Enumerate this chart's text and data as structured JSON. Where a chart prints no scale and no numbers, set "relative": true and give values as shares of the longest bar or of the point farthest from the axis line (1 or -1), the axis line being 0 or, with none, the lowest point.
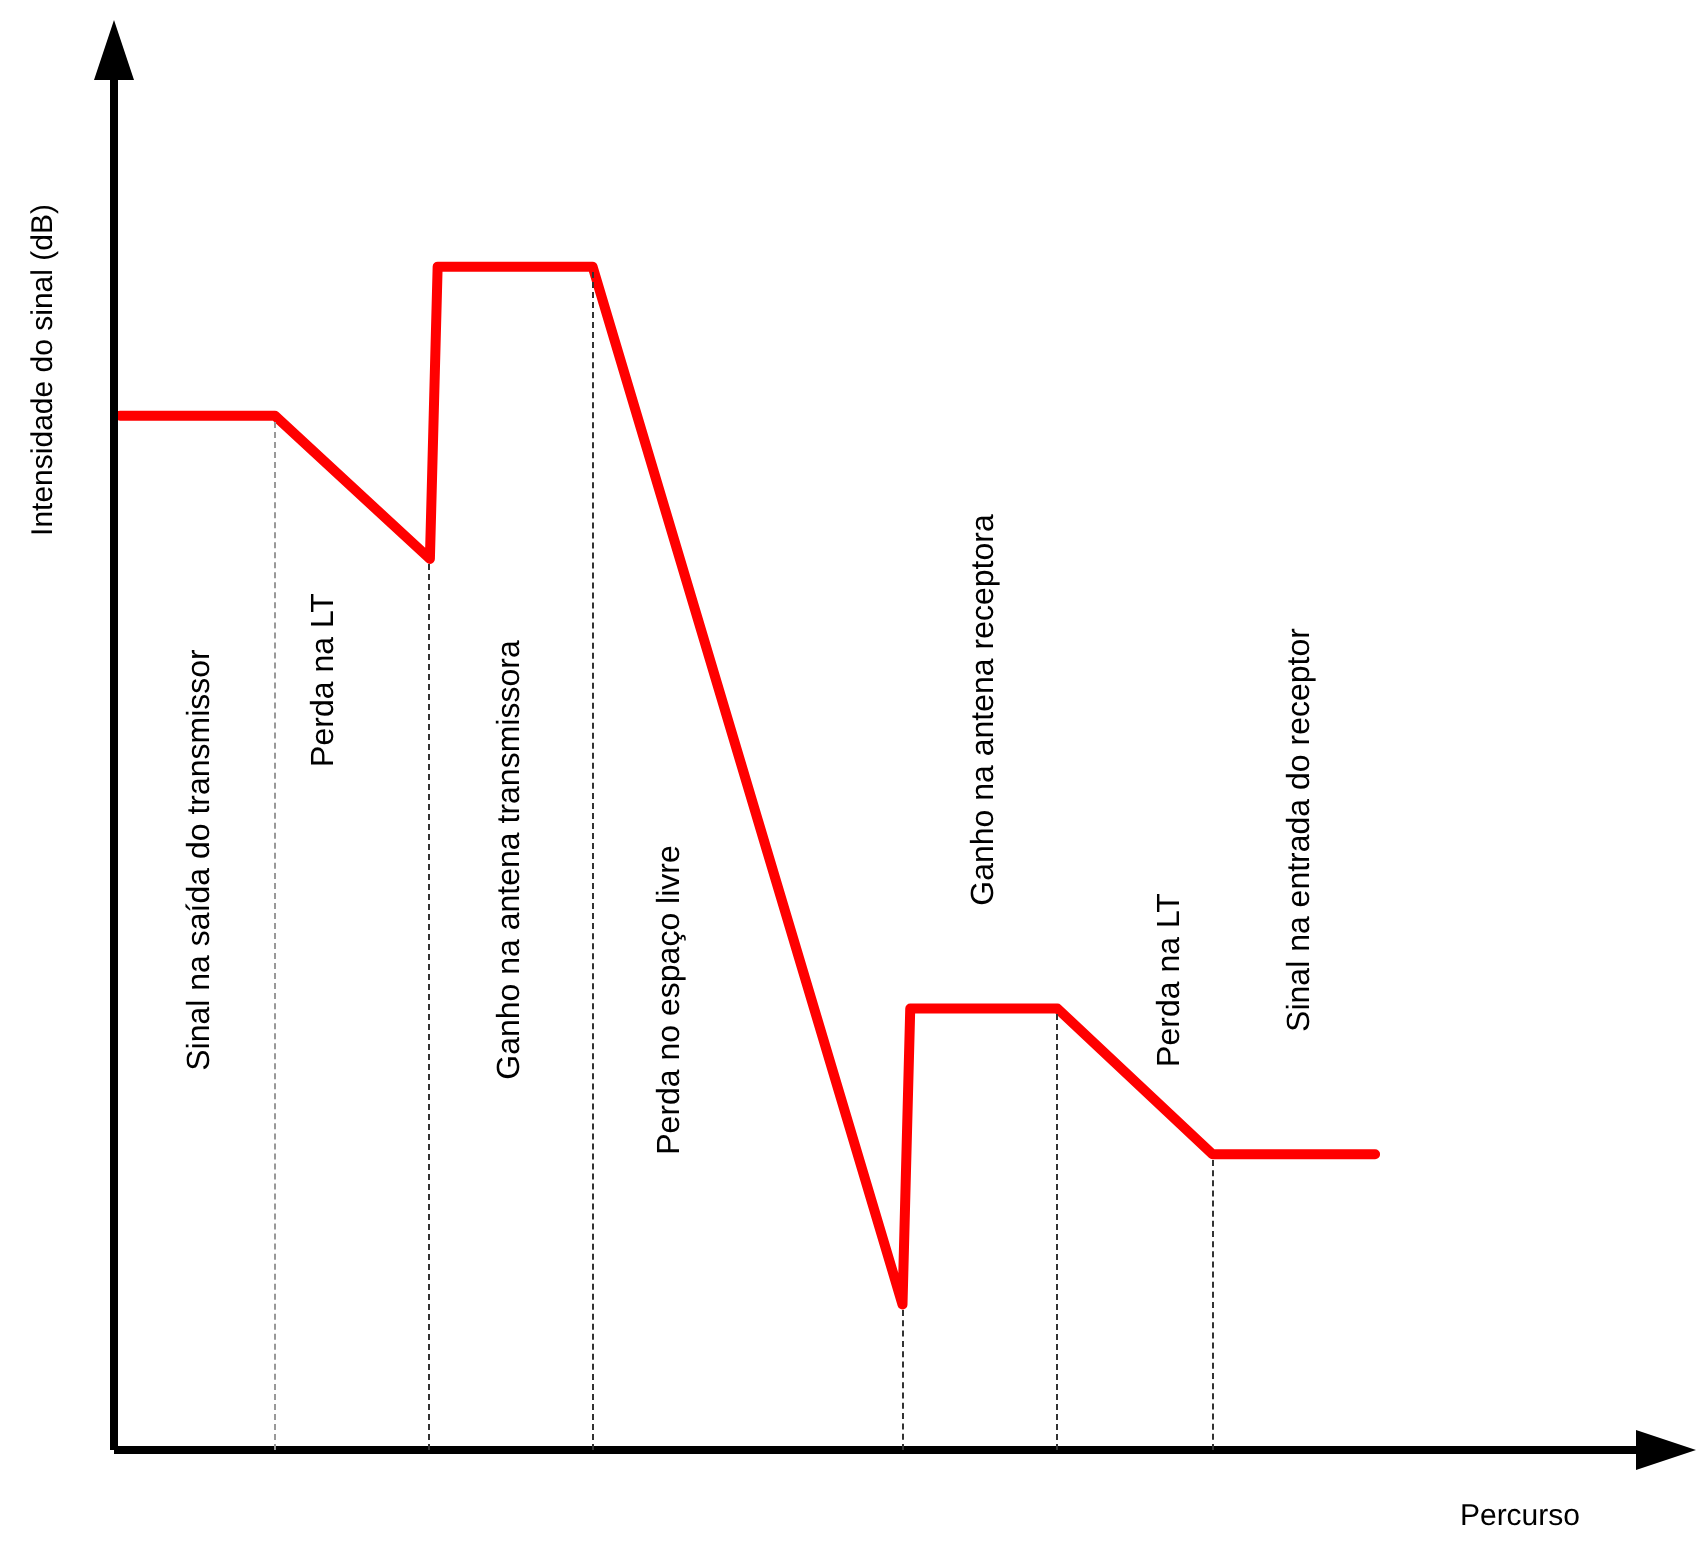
{
  "chart_data": {
    "type": "line",
    "relative": true,
    "xlabel": "Percurso",
    "ylabel": "Intensidade do sinal (dB)",
    "categories": [
      null,
      null,
      null,
      null,
      null,
      null,
      null,
      null,
      null,
      null,
      null,
      null,
      null,
      null,
      null,
      null,
      null,
      null,
      null,
      null,
      null,
      null,
      null,
      null,
      null,
      null,
      null,
      null,
      null,
      null,
      null,
      null,
      null,
      null,
      null,
      null,
      null,
      null,
      null,
      null,
      null,
      null,
      null,
      null,
      null,
      null,
      null,
      null,
      null,
      null,
      null,
      null,
      null,
      null,
      null,
      null,
      null,
      null,
      null,
      null,
      null,
      null,
      null,
      null,
      null,
      null,
      null,
      null,
      null,
      null,
      null,
      null,
      null,
      null,
      null,
      null,
      null,
      null,
      null,
      null,
      null,
      null,
      null,
      null,
      null,
      null,
      null,
      null,
      null,
      null,
      null,
      null,
      null,
      null,
      null,
      null,
      null,
      null,
      null,
      null,
      null,
      null,
      null,
      null,
      null,
      null,
      null,
      null,
      null,
      null,
      null,
      null,
      null,
      null,
      null,
      null,
      null,
      null,
      null,
      null,
      null,
      null,
      null,
      null,
      null,
      null,
      null,
      null,
      null,
      null,
      null,
      null,
      null,
      null,
      null,
      null,
      null,
      null,
      null,
      null,
      null,
      null,
      null,
      null,
      null,
      null,
      null,
      null,
      null,
      null,
      null,
      null,
      null,
      null,
      null,
      null,
      null,
      null,
      null,
      null,
      null,
      null,
      null,
      null,
      null,
      null,
      null,
      null,
      null,
      null,
      null,
      null,
      null,
      null,
      null,
      null,
      null,
      null,
      null,
      null,
      null,
      null,
      null,
      null,
      null,
      null,
      null,
      null,
      null,
      null,
      null,
      null,
      null,
      null,
      null,
      null,
      null,
      null,
      null
    ],
    "legend": false,
    "marker": "none",
    "series": [
      {
        "color": "#ff0000",
        "values": [
          0.874,
          null,
          null,
          null,
          null,
          null,
          null,
          null,
          null,
          null,
          null,
          null,
          null,
          null,
          null,
          null,
          null,
          null,
          null,
          null,
          0.874,
          null,
          null,
          null,
          null,
          null,
          null,
          null,
          null,
          null,
          null,
          null,
          null,
          null,
          null,
          null,
          null,
          null,
          null,
          null,
          0.753,
          1,
          null,
          null,
          null,
          null,
          null,
          null,
          null,
          null,
          null,
          null,
          null,
          null,
          null,
          null,
          null,
          null,
          null,
          null,
          null,
          1,
          null,
          null,
          null,
          null,
          null,
          null,
          null,
          null,
          null,
          null,
          null,
          null,
          null,
          null,
          null,
          null,
          null,
          null,
          null,
          null,
          null,
          null,
          null,
          null,
          null,
          null,
          null,
          null,
          null,
          null,
          null,
          null,
          null,
          null,
          null,
          null,
          null,
          null,
          null,
          0.123,
          0.373,
          null,
          null,
          null,
          null,
          null,
          null,
          null,
          null,
          null,
          null,
          null,
          null,
          null,
          null,
          null,
          null,
          null,
          null,
          0.373,
          null,
          null,
          null,
          null,
          null,
          null,
          null,
          null,
          null,
          null,
          null,
          null,
          null,
          null,
          null,
          null,
          null,
          null,
          null,
          0.25,
          null,
          null,
          null,
          null,
          null,
          null,
          null,
          null,
          null,
          null,
          null,
          null,
          null,
          null,
          null,
          null,
          null,
          null,
          null,
          null,
          0.25,
          null,
          null,
          null,
          null,
          null,
          null,
          null,
          null,
          null,
          null,
          null,
          null,
          null,
          null,
          null,
          null,
          null,
          null,
          null,
          null,
          null,
          null,
          null,
          null,
          null,
          null,
          null,
          null,
          null,
          null,
          null,
          null,
          null,
          null,
          null,
          null
        ]
      }
    ],
    "annotations": [
      "Sinal na saída do transmissor",
      "Perda na LT",
      "Ganho na antena transmissora",
      "Perda no espaço livre",
      "Ganho na antena receptora",
      "Perda na LT",
      "Sinal na entrada do receptor"
    ]
  }
}
